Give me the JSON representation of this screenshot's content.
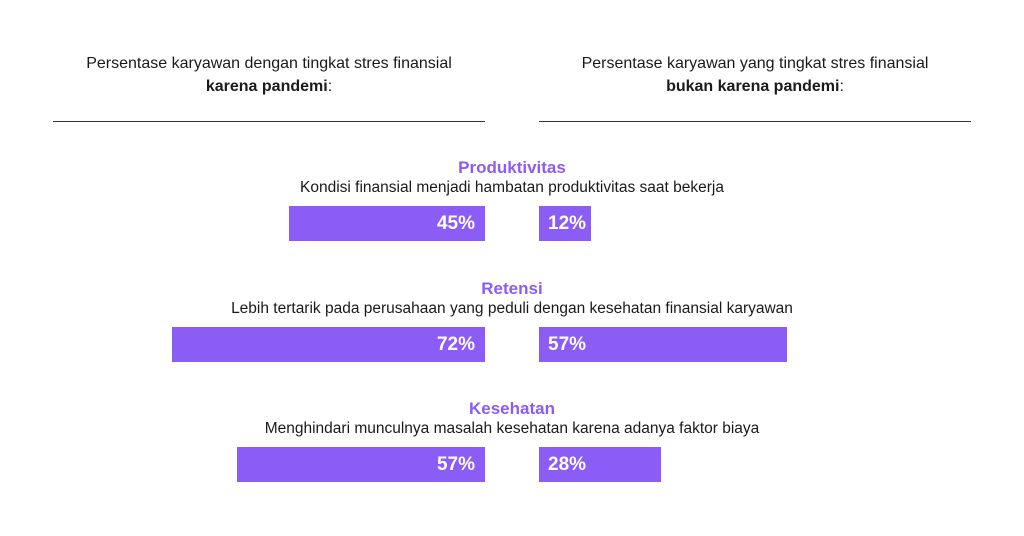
{
  "colors": {
    "accent": "#8b5cf6",
    "bar": "#8b5cf6",
    "text": "#1a1a1a"
  },
  "headers": {
    "left": {
      "text": "Persentase karyawan dengan tingkat stres finansial",
      "bold": "karena pandemi",
      "suffix": ":"
    },
    "right": {
      "text": "Persentase karyawan yang tingkat stres finansial",
      "bold": "bukan karena pandemi",
      "suffix": ":"
    }
  },
  "chart_data": {
    "type": "bar",
    "categories": [
      "Produktivitas",
      "Retensi",
      "Kesehatan"
    ],
    "descriptions": [
      "Kondisi finansial menjadi hambatan produktivitas saat bekerja",
      "Lebih tertarik pada perusahaan yang peduli dengan kesehatan finansial karyawan",
      "Menghindari munculnya masalah kesehatan karena adanya faktor biaya"
    ],
    "series": [
      {
        "values": [
          45,
          72,
          57
        ],
        "labels": [
          "45%",
          "72%",
          "57%"
        ]
      },
      {
        "values": [
          12,
          57,
          28
        ],
        "labels": [
          "12%",
          "57%",
          "28%"
        ]
      }
    ],
    "ylim": [
      0,
      100
    ]
  }
}
